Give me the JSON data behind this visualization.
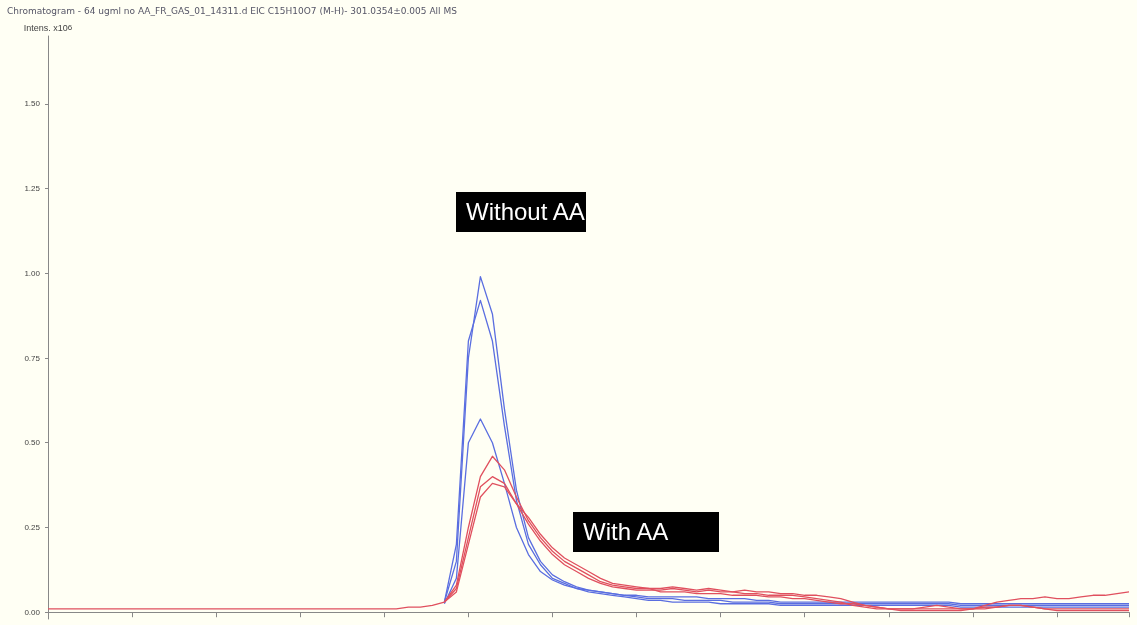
{
  "chart_data": {
    "type": "line",
    "title": "Chromatogram - 64 ugml no AA_FR_GAS_01_14311.d EIC C15H10O7 (M-H)- 301.0354±0.005 All MS",
    "ylabel": "Intens. x10$^{6}$",
    "categories": [
      null,
      null,
      null,
      null,
      null,
      null,
      null,
      null,
      null,
      null,
      null,
      null,
      null,
      null,
      null,
      null,
      null,
      null,
      null,
      null,
      null,
      null,
      null,
      null,
      null,
      null,
      null,
      null,
      null,
      null,
      null,
      null,
      null,
      null,
      null,
      null,
      null,
      null,
      null,
      null,
      null,
      null,
      null,
      null,
      null,
      null,
      null,
      null,
      null,
      null,
      null,
      null,
      null,
      null,
      null,
      null,
      null,
      null,
      null,
      null,
      null,
      null,
      null,
      null,
      null,
      null,
      null,
      null,
      null,
      null,
      null,
      null,
      null,
      null,
      null,
      null,
      null,
      null,
      null,
      null,
      null,
      null,
      null,
      null,
      null,
      null,
      null,
      null,
      null,
      null,
      null
    ],
    "series": [
      {
        "color": "#5a6ee0",
        "values": [
          null,
          null,
          null,
          null,
          null,
          null,
          null,
          null,
          null,
          null,
          null,
          null,
          null,
          null,
          null,
          null,
          null,
          null,
          null,
          null,
          null,
          null,
          null,
          null,
          null,
          null,
          null,
          null,
          null,
          null,
          null,
          null,
          null,
          0.03,
          0.15,
          0.75,
          0.99,
          0.88,
          0.6,
          0.36,
          0.22,
          0.15,
          0.11,
          0.09,
          0.075,
          0.065,
          0.06,
          0.055,
          0.05,
          0.045,
          0.04,
          0.04,
          0.04,
          0.035,
          0.035,
          0.035,
          0.035,
          0.03,
          0.03,
          0.03,
          0.03,
          0.025,
          0.025,
          0.025,
          0.025,
          0.025,
          0.025,
          0.025,
          0.025,
          0.025,
          0.025,
          0.025,
          0.025,
          0.025,
          0.025,
          0.025,
          0.02,
          0.02,
          0.02,
          0.02,
          0.02,
          0.02,
          0.02,
          0.02,
          0.02,
          0.02,
          0.02,
          0.02,
          0.02,
          0.02,
          0.02
        ]
      },
      {
        "color": "#5a6ee0",
        "values": [
          null,
          null,
          null,
          null,
          null,
          null,
          null,
          null,
          null,
          null,
          null,
          null,
          null,
          null,
          null,
          null,
          null,
          null,
          null,
          null,
          null,
          null,
          null,
          null,
          null,
          null,
          null,
          null,
          null,
          null,
          null,
          null,
          null,
          0.03,
          0.2,
          0.8,
          0.92,
          0.8,
          0.55,
          0.33,
          0.2,
          0.14,
          0.1,
          0.085,
          0.07,
          0.06,
          0.055,
          0.05,
          0.045,
          0.04,
          0.035,
          0.035,
          0.03,
          0.03,
          0.03,
          0.03,
          0.025,
          0.025,
          0.025,
          0.025,
          0.025,
          0.02,
          0.02,
          0.02,
          0.02,
          0.02,
          0.02,
          0.02,
          0.02,
          0.02,
          0.02,
          0.02,
          0.02,
          0.02,
          0.02,
          0.02,
          0.015,
          0.015,
          0.015,
          0.015,
          0.015,
          0.015,
          0.015,
          0.015,
          0.015,
          0.015,
          0.015,
          0.015,
          0.015,
          0.015,
          0.015
        ]
      },
      {
        "color": "#5a6ee0",
        "values": [
          null,
          null,
          null,
          null,
          null,
          null,
          null,
          null,
          null,
          null,
          null,
          null,
          null,
          null,
          null,
          null,
          null,
          null,
          null,
          null,
          null,
          null,
          null,
          null,
          null,
          null,
          null,
          null,
          null,
          null,
          null,
          null,
          null,
          0.025,
          0.1,
          0.5,
          0.57,
          0.5,
          0.38,
          0.25,
          0.17,
          0.12,
          0.095,
          0.08,
          0.07,
          0.065,
          0.06,
          0.055,
          0.05,
          0.05,
          0.045,
          0.045,
          0.045,
          0.045,
          0.045,
          0.04,
          0.04,
          0.04,
          0.04,
          0.035,
          0.035,
          0.03,
          0.03,
          0.03,
          0.03,
          0.03,
          0.03,
          0.03,
          0.03,
          0.03,
          0.03,
          0.03,
          0.03,
          0.03,
          0.03,
          0.03,
          0.025,
          0.025,
          0.025,
          0.025,
          0.025,
          0.025,
          0.025,
          0.025,
          0.025,
          0.025,
          0.025,
          0.025,
          0.025,
          0.025,
          0.025
        ]
      },
      {
        "color": "#e0505e",
        "values": [
          null,
          null,
          null,
          null,
          null,
          null,
          null,
          null,
          null,
          null,
          null,
          null,
          null,
          null,
          null,
          null,
          null,
          null,
          null,
          null,
          null,
          null,
          null,
          null,
          null,
          null,
          null,
          null,
          null,
          null,
          null,
          null,
          null,
          0.03,
          0.08,
          0.25,
          0.4,
          0.46,
          0.42,
          0.34,
          0.27,
          0.22,
          0.18,
          0.15,
          0.13,
          0.11,
          0.09,
          0.08,
          0.075,
          0.07,
          0.07,
          0.07,
          0.075,
          0.07,
          0.065,
          0.07,
          0.065,
          0.06,
          0.065,
          0.06,
          0.06,
          0.055,
          0.055,
          0.05,
          0.05,
          0.045,
          0.04,
          0.03,
          0.02,
          0.015,
          0.01,
          0.01,
          0.01,
          0.015,
          0.02,
          0.015,
          0.01,
          0.01,
          0.02,
          0.03,
          0.035,
          0.04,
          0.04,
          0.045,
          0.04,
          0.04,
          0.045,
          0.05,
          0.05,
          0.055,
          0.06
        ]
      },
      {
        "color": "#e0505e",
        "values": [
          null,
          null,
          null,
          null,
          null,
          null,
          null,
          null,
          null,
          null,
          null,
          null,
          null,
          null,
          null,
          null,
          null,
          null,
          null,
          null,
          null,
          null,
          null,
          null,
          null,
          null,
          null,
          null,
          null,
          null,
          null,
          null,
          null,
          0.03,
          0.07,
          0.22,
          0.37,
          0.4,
          0.38,
          0.32,
          0.26,
          0.21,
          0.17,
          0.14,
          0.12,
          0.1,
          0.085,
          0.075,
          0.07,
          0.065,
          0.065,
          0.065,
          0.07,
          0.065,
          0.06,
          0.065,
          0.06,
          0.06,
          0.055,
          0.055,
          0.05,
          0.05,
          0.05,
          0.045,
          0.04,
          0.035,
          0.03,
          0.02,
          0.015,
          0.01,
          0.01,
          0.005,
          0.005,
          0.005,
          0.005,
          0.005,
          0.005,
          0.01,
          0.015,
          0.015,
          0.02,
          0.02,
          0.015,
          0.01,
          0.005,
          0.005,
          0.005,
          0.005,
          0.005,
          0.005,
          0.005
        ]
      },
      {
        "color": "#e0505e",
        "values": [
          0.01,
          0.01,
          0.01,
          0.01,
          0.01,
          0.01,
          0.01,
          0.01,
          0.01,
          0.01,
          0.01,
          0.01,
          0.01,
          0.01,
          0.01,
          0.01,
          0.01,
          0.01,
          0.01,
          0.01,
          0.01,
          0.01,
          0.01,
          0.01,
          0.01,
          0.01,
          0.01,
          0.01,
          0.01,
          0.01,
          0.015,
          0.015,
          0.02,
          0.03,
          0.06,
          0.2,
          0.34,
          0.38,
          0.37,
          0.32,
          0.28,
          0.23,
          0.19,
          0.16,
          0.14,
          0.12,
          0.1,
          0.085,
          0.08,
          0.075,
          0.07,
          0.06,
          0.06,
          0.06,
          0.055,
          0.055,
          0.055,
          0.05,
          0.05,
          0.05,
          0.045,
          0.045,
          0.04,
          0.04,
          0.035,
          0.03,
          0.025,
          0.025,
          0.02,
          0.015,
          0.01,
          0.01,
          0.01,
          0.01,
          0.01,
          0.01,
          0.01,
          0.01,
          0.01,
          0.015,
          0.02,
          0.02,
          0.015,
          0.01,
          0.01,
          0.01,
          0.01,
          0.01,
          0.01,
          0.01,
          0.01
        ]
      }
    ],
    "ylim": [
      -0.02,
      1.7
    ],
    "yticks": [
      {
        "value": 0,
        "label": "0.00"
      },
      0.25,
      {
        "value": 0.5,
        "label": "0.50"
      },
      0.75,
      {
        "value": 1,
        "label": "1.00"
      },
      1.25,
      {
        "value": 1.5,
        "label": "1.50"
      }
    ],
    "tick_labels": "y",
    "marker": "none",
    "annotations": [
      "Without AA",
      "With AA"
    ]
  }
}
